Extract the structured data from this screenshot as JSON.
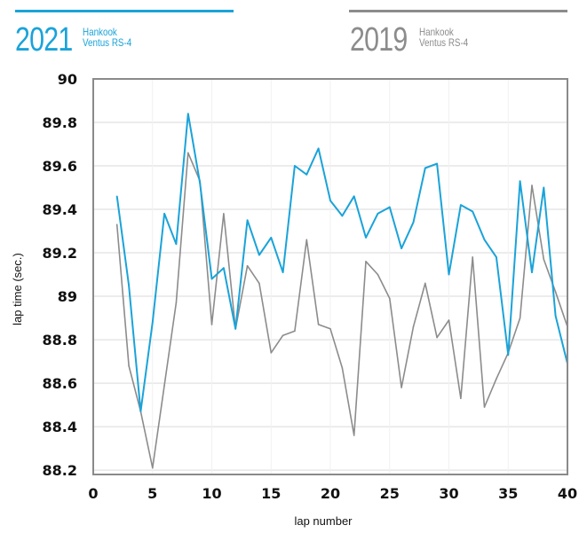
{
  "legend": [
    {
      "year": "2021",
      "line1": "Hankook",
      "line2": "Ventus RS-4",
      "color": "#1aa3d9"
    },
    {
      "year": "2019",
      "line1": "Hankook",
      "line2": "Ventus RS-4",
      "color": "#8c8c8c"
    }
  ],
  "chart_data": {
    "type": "line",
    "title": "",
    "xlabel": "lap number",
    "ylabel": "lap time (sec.)",
    "xlim": [
      0,
      40
    ],
    "ylim": [
      88.18,
      90
    ],
    "xticks": [
      0,
      5,
      10,
      15,
      20,
      25,
      30,
      35,
      40
    ],
    "yticks": [
      88.2,
      88.4,
      88.6,
      88.8,
      89,
      89.2,
      89.4,
      89.6,
      89.8,
      90
    ],
    "ytick_labels": [
      "88.2",
      "88.4",
      "88.6",
      "88.8",
      "89",
      "89.2",
      "89.4",
      "89.6",
      "89.8",
      "90"
    ],
    "grid": true,
    "legend_position": "top",
    "x": [
      2,
      3,
      4,
      5,
      6,
      7,
      8,
      9,
      10,
      11,
      12,
      13,
      14,
      15,
      16,
      17,
      18,
      19,
      20,
      21,
      22,
      23,
      24,
      25,
      26,
      27,
      28,
      29,
      30,
      31,
      32,
      33,
      34,
      35,
      36,
      37,
      38,
      39,
      40
    ],
    "series": [
      {
        "name": "2021 Hankook Ventus RS-4",
        "color": "#1aa3d9",
        "values": [
          89.46,
          89.05,
          88.47,
          88.88,
          89.38,
          89.24,
          89.84,
          89.52,
          89.08,
          89.13,
          88.85,
          89.35,
          89.19,
          89.27,
          89.11,
          89.6,
          89.56,
          89.68,
          89.44,
          89.37,
          89.46,
          89.27,
          89.38,
          89.41,
          89.22,
          89.34,
          89.59,
          89.61,
          89.1,
          89.42,
          89.39,
          89.26,
          89.18,
          88.73,
          89.53,
          89.11,
          89.5,
          88.91,
          88.69
        ]
      },
      {
        "name": "2019 Hankook Ventus RS-4",
        "color": "#8c8c8c",
        "values": [
          89.33,
          88.68,
          88.47,
          88.21,
          88.59,
          88.97,
          89.66,
          89.53,
          88.87,
          89.38,
          88.85,
          89.14,
          89.06,
          88.74,
          88.82,
          88.84,
          89.26,
          88.87,
          88.85,
          88.67,
          88.36,
          89.16,
          89.1,
          88.99,
          88.58,
          88.86,
          89.06,
          88.81,
          88.89,
          88.53,
          89.18,
          88.49,
          88.62,
          88.74,
          88.9,
          89.51,
          89.17,
          89.02,
          88.86
        ]
      }
    ]
  }
}
